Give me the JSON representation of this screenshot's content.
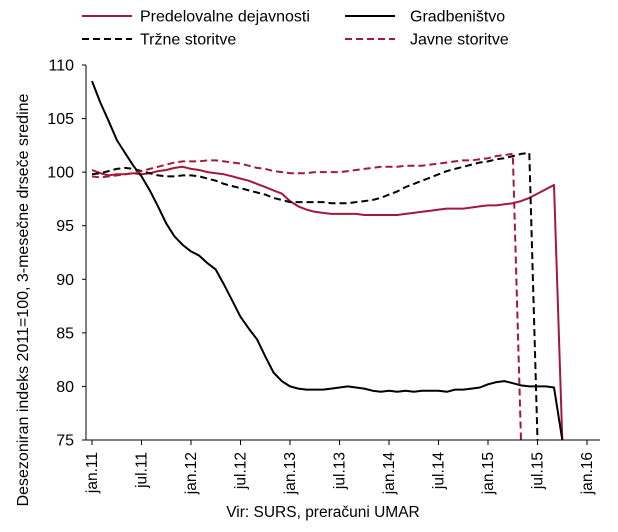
{
  "chart_data": {
    "type": "line",
    "title": "",
    "ylabel": "Desezoniran indeks 2011=100, 3-mesečne drseče sredine",
    "xlabel": "",
    "source": "Vir: SURS, preračuni UMAR",
    "ylim": [
      75,
      110
    ],
    "yticks": [
      75,
      80,
      85,
      90,
      95,
      100,
      105,
      110
    ],
    "xticks": [
      "jan.11",
      "jul.11",
      "jan.12",
      "jul.12",
      "jan.13",
      "jul.13",
      "jan.14",
      "jul.14",
      "jan.15",
      "jul.15",
      "jan.16"
    ],
    "x_start": "2011-01",
    "x_step": "month",
    "legend_position": "top",
    "grid": false,
    "series": [
      {
        "name": "Predelovalne dejavnosti",
        "color": "#a3193a",
        "dash": "solid",
        "values": [
          100.2,
          99.9,
          99.7,
          99.8,
          99.8,
          99.9,
          99.8,
          99.9,
          100.1,
          100.2,
          100.4,
          100.5,
          100.3,
          100.2,
          100.0,
          99.9,
          99.8,
          99.6,
          99.4,
          99.2,
          98.9,
          98.6,
          98.3,
          98.0,
          97.3,
          96.8,
          96.5,
          96.3,
          96.2,
          96.1,
          96.1,
          96.1,
          96.1,
          96.0,
          96.0,
          96.0,
          96.0,
          96.0,
          96.1,
          96.2,
          96.3,
          96.4,
          96.5,
          96.6,
          96.6,
          96.6,
          96.7,
          96.8,
          96.9,
          96.9,
          97.0,
          97.1,
          97.3,
          97.6,
          98.0,
          98.4,
          98.8,
          75.0
        ]
      },
      {
        "name": "Gradbeništvo",
        "color": "#000000",
        "dash": "solid",
        "values": [
          108.5,
          106.5,
          104.8,
          103.0,
          101.8,
          100.6,
          99.6,
          98.3,
          96.8,
          95.2,
          94.0,
          93.2,
          92.6,
          92.2,
          91.5,
          90.9,
          89.5,
          88.0,
          86.5,
          85.4,
          84.4,
          82.8,
          81.3,
          80.5,
          80.0,
          79.8,
          79.7,
          79.7,
          79.7,
          79.8,
          79.9,
          80.0,
          79.9,
          79.8,
          79.6,
          79.5,
          79.6,
          79.5,
          79.6,
          79.5,
          79.6,
          79.6,
          79.6,
          79.5,
          79.7,
          79.7,
          79.8,
          79.9,
          80.2,
          80.4,
          80.5,
          80.3,
          80.1,
          80.0,
          80.0,
          80.0,
          79.9,
          75.0
        ]
      },
      {
        "name": "Tržne storitve",
        "color": "#000000",
        "dash": "dashed",
        "values": [
          99.8,
          99.9,
          100.1,
          100.3,
          100.4,
          100.3,
          100.1,
          99.9,
          99.7,
          99.6,
          99.6,
          99.7,
          99.7,
          99.6,
          99.4,
          99.2,
          98.9,
          98.7,
          98.5,
          98.3,
          98.1,
          97.9,
          97.6,
          97.4,
          97.2,
          97.2,
          97.2,
          97.2,
          97.2,
          97.1,
          97.1,
          97.1,
          97.2,
          97.3,
          97.4,
          97.6,
          97.9,
          98.2,
          98.6,
          98.9,
          99.2,
          99.5,
          99.8,
          100.1,
          100.3,
          100.5,
          100.7,
          100.9,
          101.0,
          101.2,
          101.3,
          101.5,
          101.7,
          101.8,
          75.0
        ]
      },
      {
        "name": "Javne storitve",
        "color": "#a3193a",
        "dash": "dashed",
        "values": [
          99.6,
          99.5,
          99.6,
          99.7,
          99.8,
          99.9,
          100.1,
          100.3,
          100.5,
          100.7,
          100.9,
          101.0,
          101.0,
          101.0,
          101.1,
          101.1,
          101.0,
          100.9,
          100.8,
          100.6,
          100.4,
          100.3,
          100.1,
          100.0,
          99.9,
          99.9,
          99.9,
          100.0,
          100.0,
          100.0,
          100.0,
          100.1,
          100.2,
          100.3,
          100.4,
          100.5,
          100.5,
          100.5,
          100.6,
          100.6,
          100.6,
          100.7,
          100.8,
          100.9,
          101.0,
          101.1,
          101.1,
          101.2,
          101.3,
          101.5,
          101.6,
          101.7,
          75.0
        ]
      }
    ]
  }
}
